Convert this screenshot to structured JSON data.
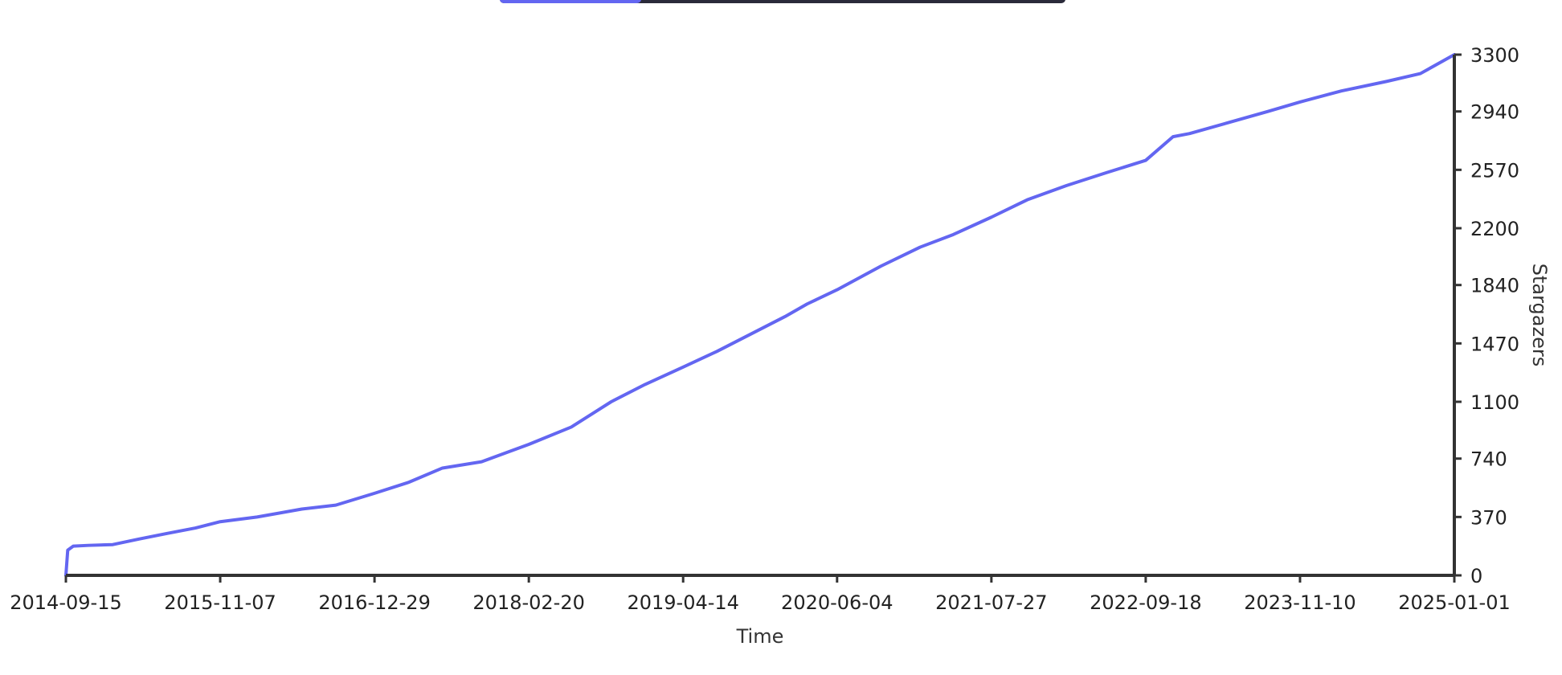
{
  "colors": {
    "line": "#6366f1",
    "axis": "#333333",
    "text": "#222222",
    "progress_fill": "#6366f1",
    "progress_track": "#2a2a3a"
  },
  "progress": {
    "fraction": 0.25
  },
  "chart_data": {
    "type": "line",
    "xlabel": "Time",
    "ylabel": "Stargazers",
    "x_axis_type": "date",
    "xlim": [
      "2014-09-15",
      "2025-01-01"
    ],
    "ylim": [
      0,
      3300
    ],
    "x_ticks": [
      "2014-09-15",
      "2015-11-07",
      "2016-12-29",
      "2018-02-20",
      "2019-04-14",
      "2020-06-04",
      "2021-07-27",
      "2022-09-18",
      "2023-11-10",
      "2025-01-01"
    ],
    "y_ticks": [
      0,
      370,
      740,
      1100,
      1470,
      1840,
      2200,
      2570,
      2940,
      3300
    ],
    "y_axis_side": "right",
    "grid": false,
    "legend": "none",
    "series": [
      {
        "x": [
          "2014-09-15",
          "2014-09-20",
          "2014-10-05",
          "2014-11-15",
          "2015-01-20",
          "2015-04-01",
          "2015-06-15",
          "2015-09-01",
          "2015-11-07",
          "2016-02-15",
          "2016-06-15",
          "2016-09-15",
          "2016-12-29",
          "2017-04-01",
          "2017-07-01",
          "2017-10-15",
          "2018-02-20",
          "2018-06-15",
          "2018-10-01",
          "2019-01-01",
          "2019-04-14",
          "2019-07-15",
          "2019-10-15",
          "2020-01-15",
          "2020-03-15",
          "2020-06-04",
          "2020-10-01",
          "2021-01-15",
          "2021-04-15",
          "2021-07-27",
          "2021-11-01",
          "2022-02-15",
          "2022-06-01",
          "2022-09-18",
          "2022-12-01",
          "2023-01-15",
          "2023-05-01",
          "2023-08-15",
          "2023-11-10",
          "2024-03-01",
          "2024-07-01",
          "2024-10-01",
          "2025-01-01"
        ],
        "y": [
          0,
          160,
          185,
          190,
          195,
          230,
          265,
          300,
          340,
          370,
          420,
          445,
          520,
          590,
          680,
          720,
          830,
          940,
          1100,
          1210,
          1320,
          1420,
          1530,
          1640,
          1720,
          1810,
          1960,
          2080,
          2160,
          2270,
          2380,
          2470,
          2550,
          2630,
          2780,
          2800,
          2870,
          2940,
          3000,
          3070,
          3130,
          3180,
          3300
        ]
      }
    ]
  }
}
